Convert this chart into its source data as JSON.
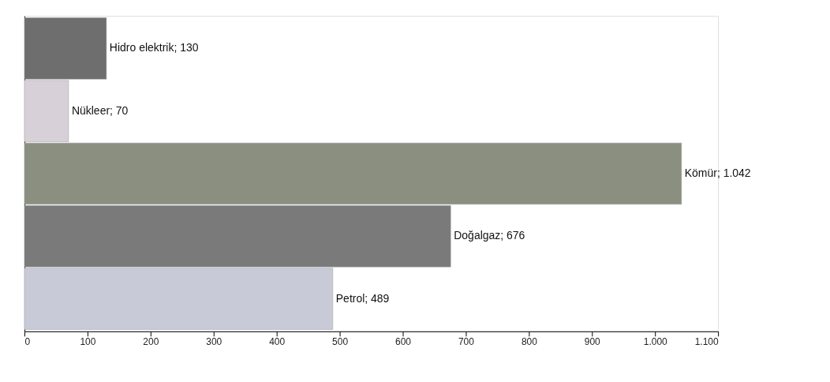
{
  "chart_data": {
    "type": "bar",
    "orientation": "horizontal",
    "categories": [
      null,
      null,
      null,
      null,
      null
    ],
    "values": [
      130,
      70,
      1042,
      676,
      489
    ],
    "colors": [
      "#6e6e6e",
      "#d8d0d8",
      "#8a8f80",
      "#7a7a7a",
      "#c8cad8"
    ],
    "value_labels": [
      "Hidro elektrik; 130",
      "Nükleer; 70",
      "Kömür; 1.042",
      "Doğalgaz; 676",
      "Petrol; 489"
    ],
    "xlim": [
      0,
      1100
    ],
    "xticks": [
      0,
      100,
      200,
      300,
      400,
      500,
      600,
      700,
      800,
      900,
      {
        "value": 1000,
        "label": "1.000"
      },
      {
        "value": 1100,
        "label": "1.100"
      }
    ],
    "grid": false
  }
}
